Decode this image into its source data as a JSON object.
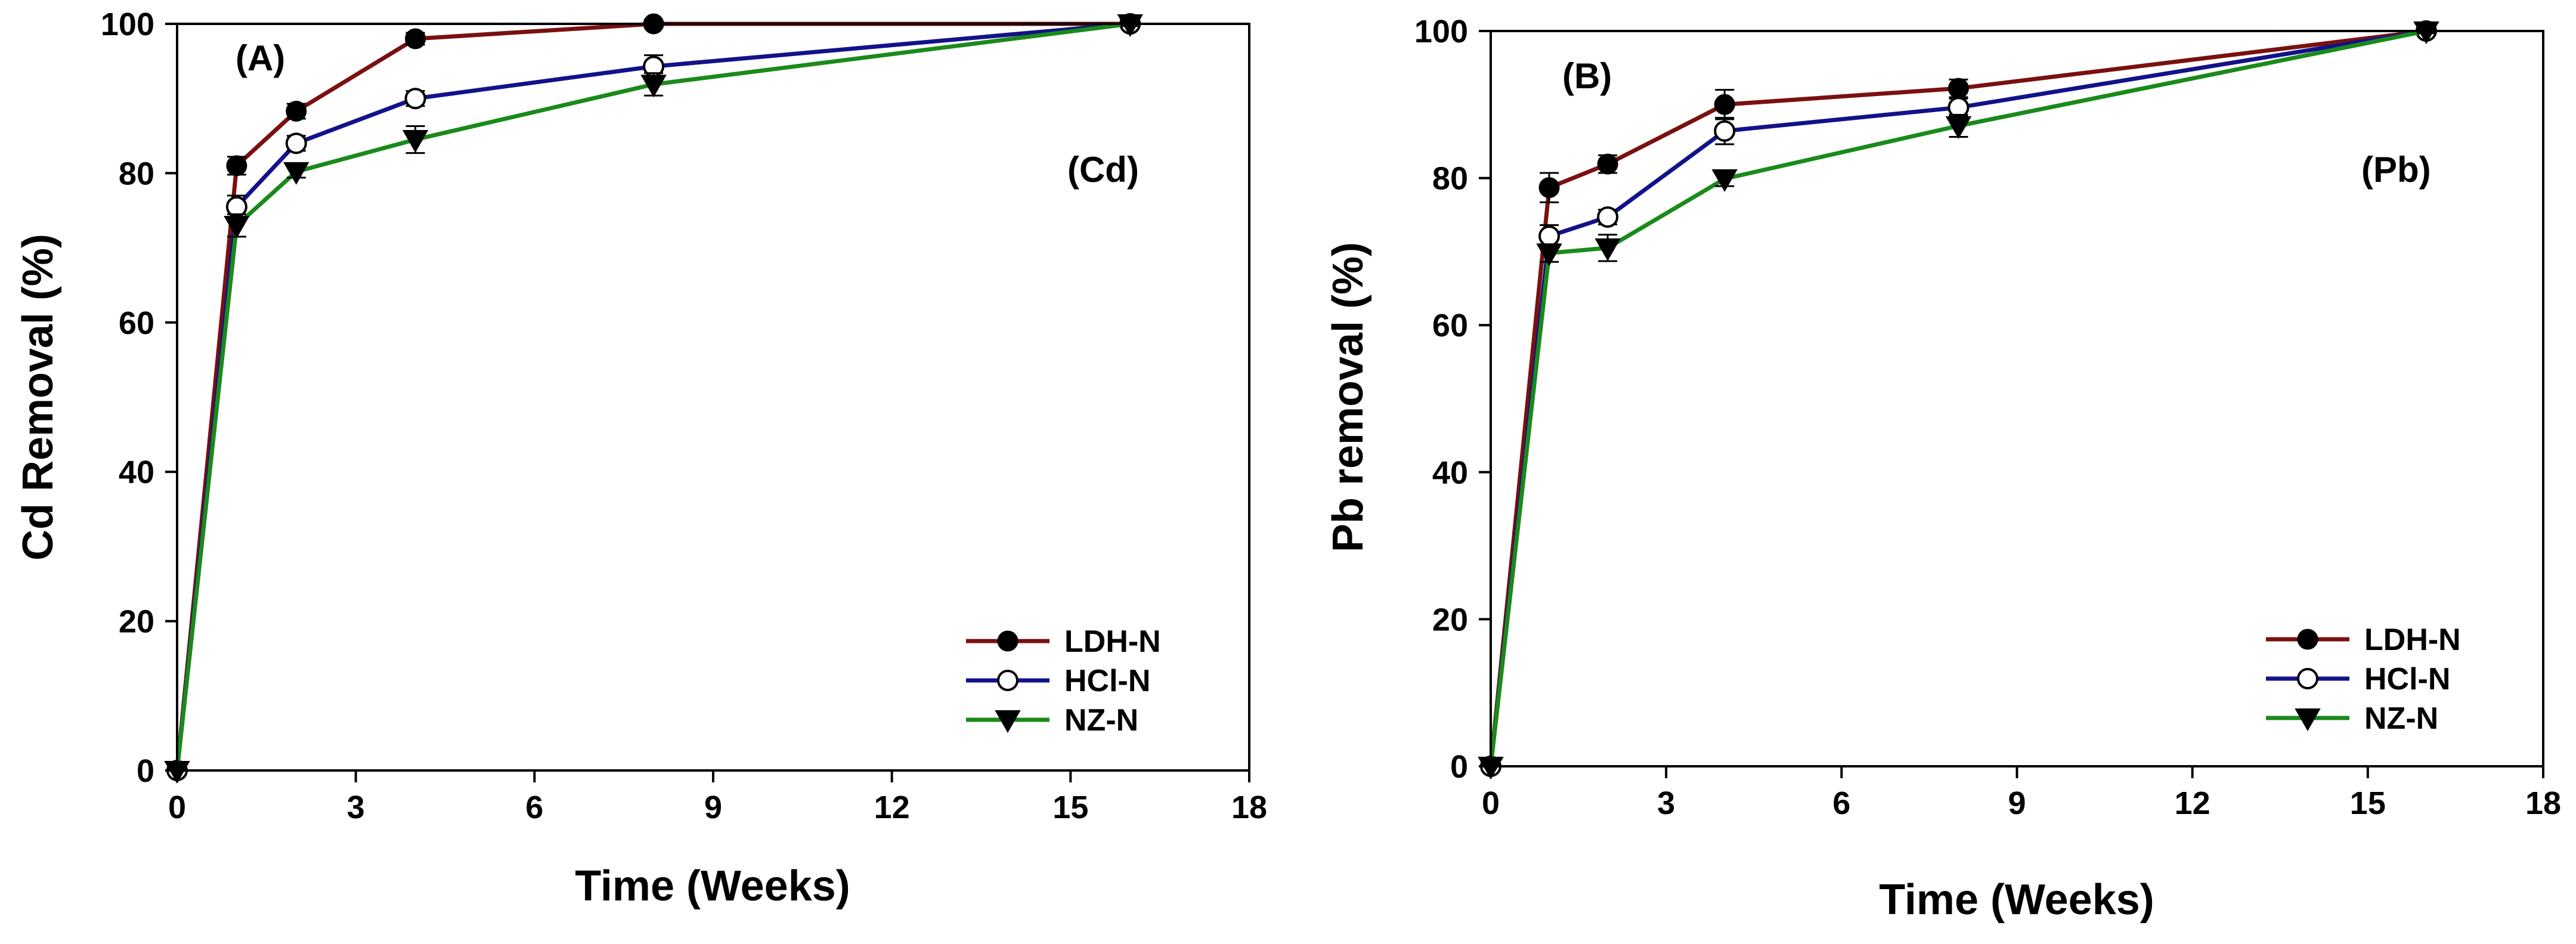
{
  "chart_data": [
    {
      "type": "line",
      "panel_label": "(A)",
      "metal_label": "(Cd)",
      "xlabel": "Time (Weeks)",
      "ylabel": "Cd Removal (%)",
      "xlim": [
        0,
        18
      ],
      "ylim": [
        0,
        100
      ],
      "xticks": [
        0,
        3,
        6,
        9,
        12,
        15,
        18
      ],
      "yticks": [
        0,
        20,
        40,
        60,
        80,
        100
      ],
      "x": [
        0,
        1,
        2,
        4,
        8,
        16
      ],
      "legend_position": "bottom-right",
      "series": [
        {
          "name": "LDH-N",
          "marker": "filled-circle",
          "color": "#7a1010",
          "values": [
            0,
            81,
            88.3,
            98,
            100,
            100
          ],
          "errors": [
            0,
            1.2,
            1.0,
            0.8,
            0.5,
            0.3
          ]
        },
        {
          "name": "HCl-N",
          "marker": "open-circle",
          "color": "#12128a",
          "values": [
            0,
            75.5,
            84,
            90,
            94.3,
            100
          ],
          "errors": [
            0,
            1.5,
            1.0,
            1.0,
            1.5,
            0.3
          ]
        },
        {
          "name": "NZ-N",
          "marker": "filled-triangle-down",
          "color": "#1a8a1a",
          "values": [
            0,
            73,
            80.2,
            84.5,
            91.9,
            100
          ],
          "errors": [
            0,
            1.5,
            0.8,
            1.8,
            1.5,
            0.3
          ]
        }
      ]
    },
    {
      "type": "line",
      "panel_label": "(B)",
      "metal_label": "(Pb)",
      "xlabel": "Time (Weeks)",
      "ylabel": "Pb removal (%)",
      "xlim": [
        0,
        18
      ],
      "ylim": [
        0,
        100
      ],
      "xticks": [
        0,
        3,
        6,
        9,
        12,
        15,
        18
      ],
      "yticks": [
        0,
        20,
        40,
        60,
        80,
        100
      ],
      "x": [
        0,
        1,
        2,
        4,
        8,
        16
      ],
      "legend_position": "bottom-right",
      "series": [
        {
          "name": "LDH-N",
          "marker": "filled-circle",
          "color": "#7a1010",
          "values": [
            0,
            78.7,
            81.9,
            90,
            92.2,
            100
          ],
          "errors": [
            0,
            2.0,
            1.2,
            2.0,
            1.2,
            0.3
          ]
        },
        {
          "name": "HCl-N",
          "marker": "open-circle",
          "color": "#12128a",
          "values": [
            0,
            72.1,
            74.7,
            86.4,
            89.6,
            100
          ],
          "errors": [
            0,
            1.5,
            1.0,
            1.8,
            1.2,
            0.3
          ]
        },
        {
          "name": "NZ-N",
          "marker": "filled-triangle-down",
          "color": "#1a8a1a",
          "values": [
            0,
            69.8,
            70.5,
            79.9,
            87.1,
            100
          ],
          "errors": [
            0,
            1.2,
            1.8,
            1.0,
            1.5,
            0.3
          ]
        }
      ]
    }
  ]
}
